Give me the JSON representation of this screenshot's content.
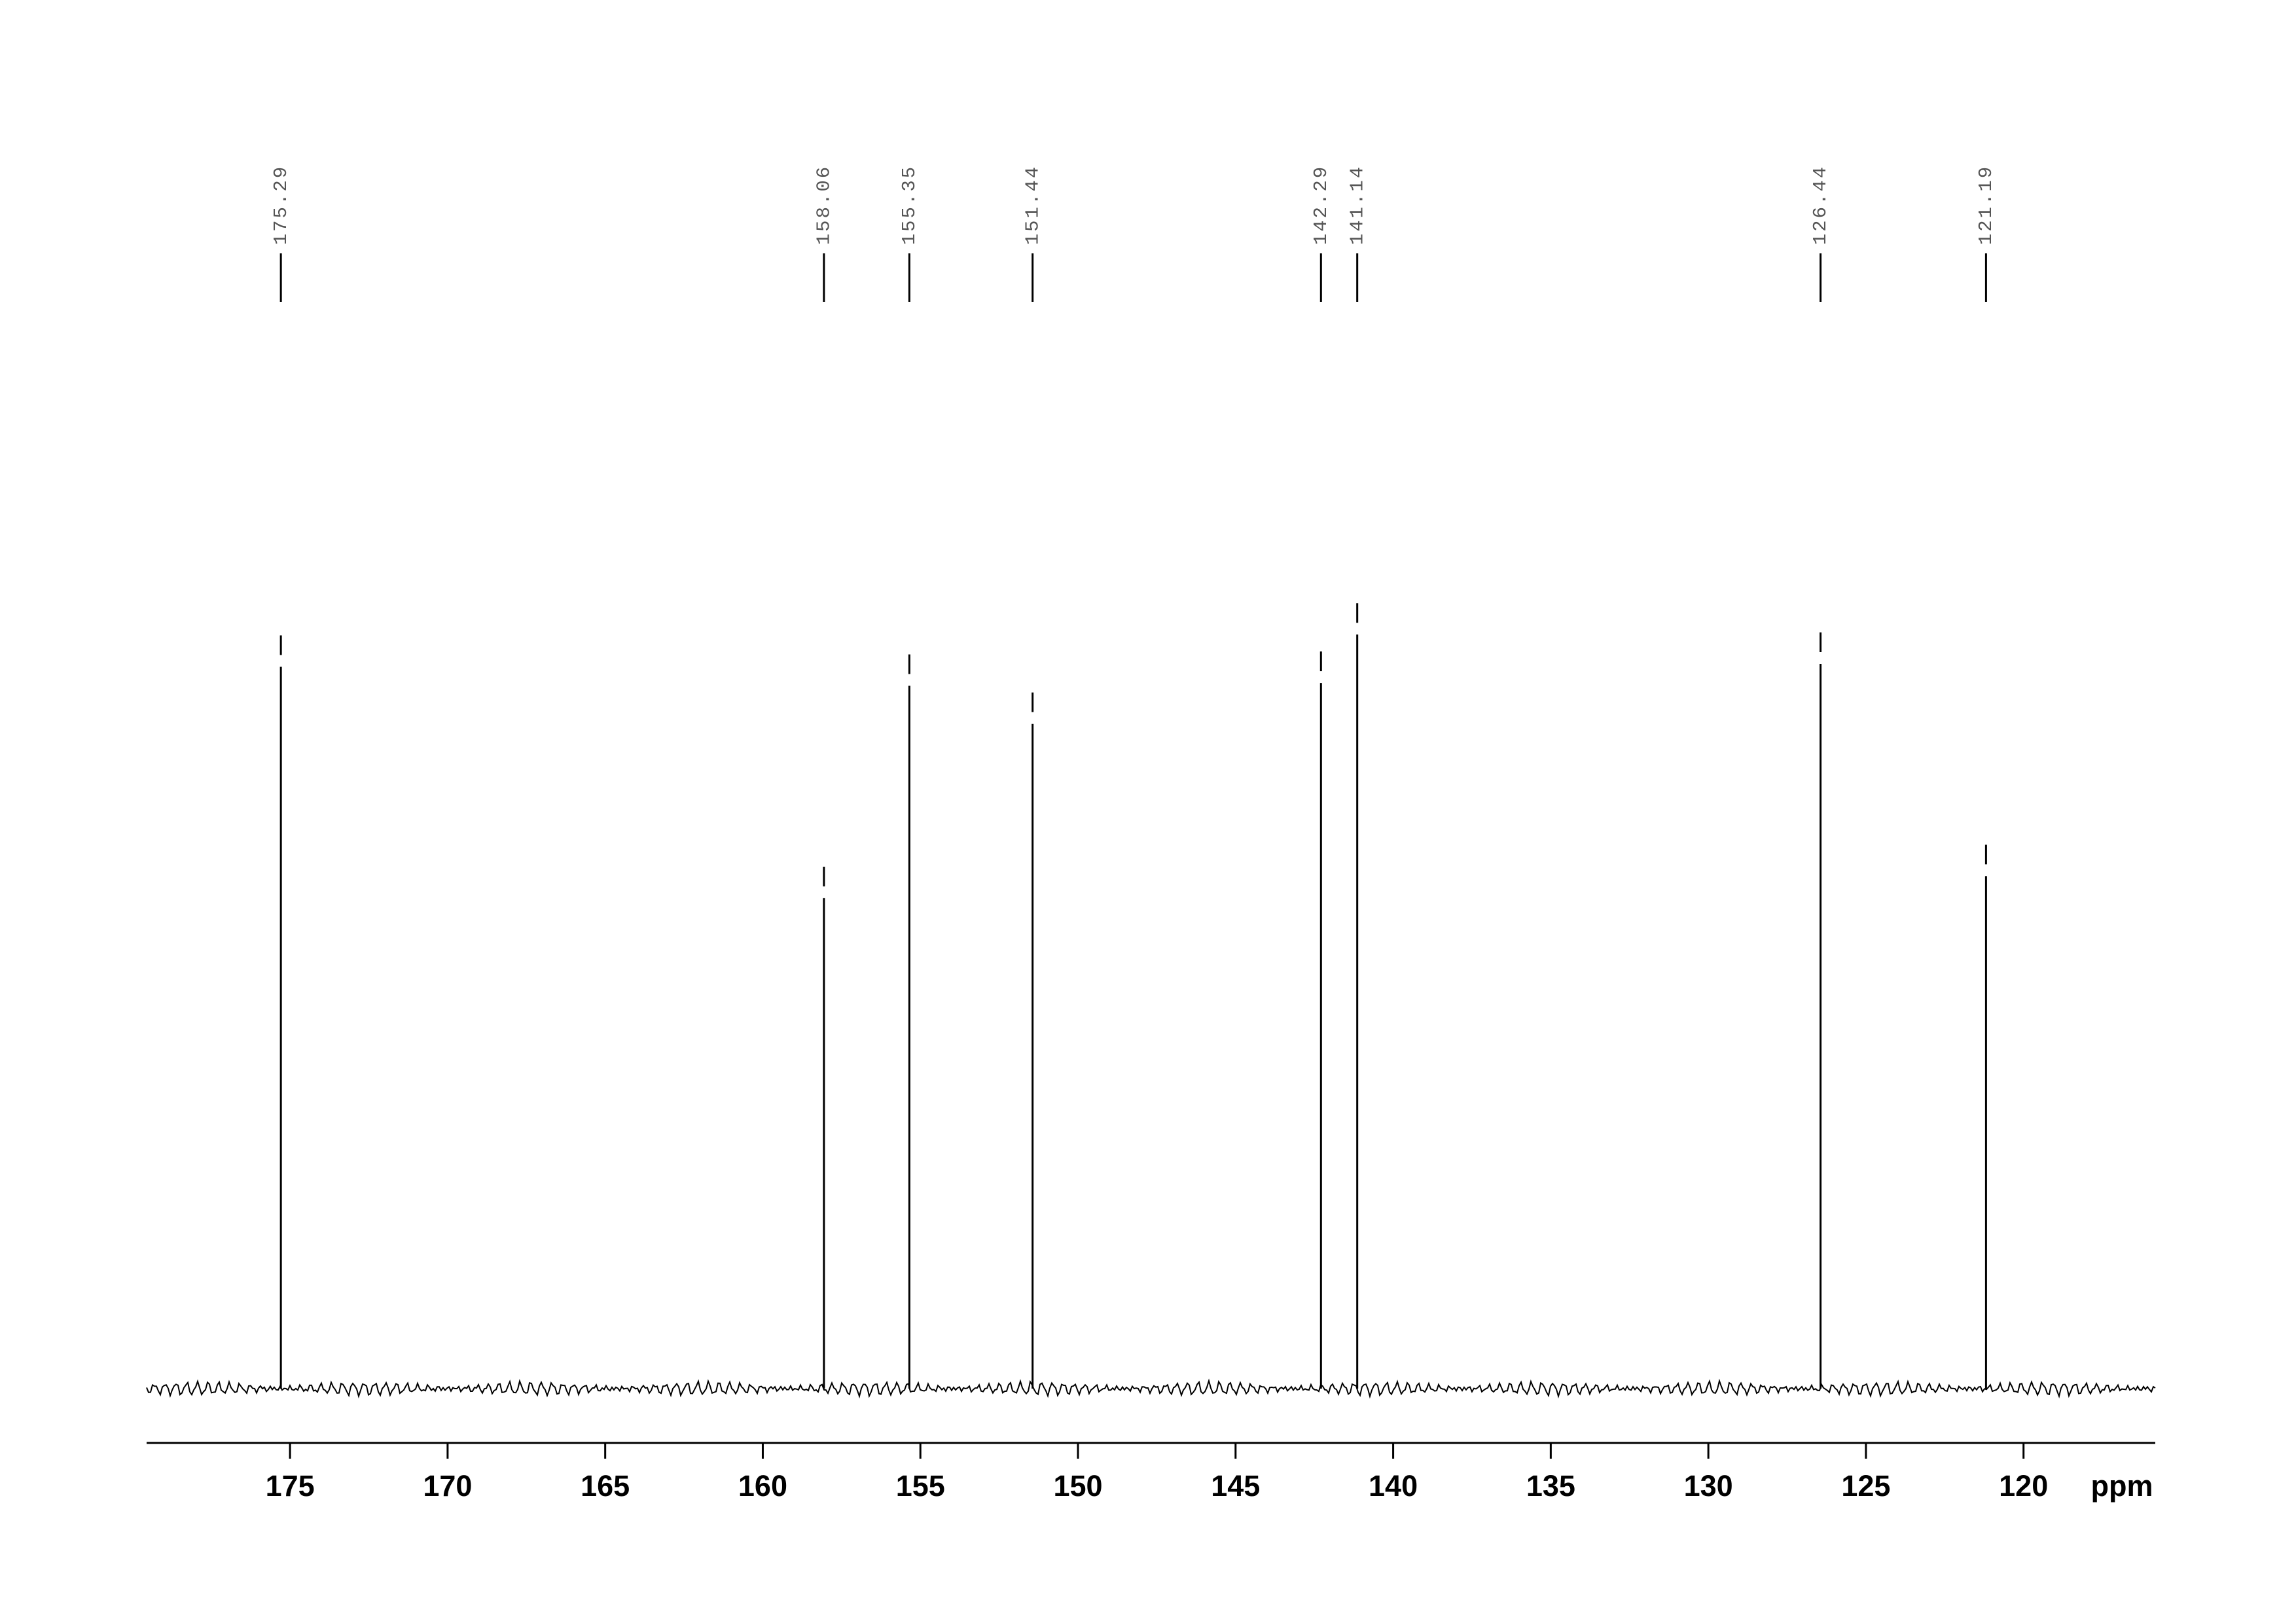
{
  "chart_data": {
    "type": "spectrum",
    "xlabel": "ppm",
    "xlim": [
      179.55,
      115.82
    ],
    "xticks": [
      175,
      170,
      165,
      160,
      155,
      150,
      145,
      140,
      135,
      130,
      125,
      120
    ],
    "ylim": [
      0,
      110
    ],
    "color": "#000000",
    "label_color": "#555555",
    "peaks": {
      "x": [
        175.29,
        158.06,
        155.35,
        151.44,
        142.29,
        141.14,
        126.44,
        121.19
      ],
      "values": [
        98.6,
        67,
        96,
        90.8,
        96.4,
        103,
        99,
        70
      ]
    }
  }
}
